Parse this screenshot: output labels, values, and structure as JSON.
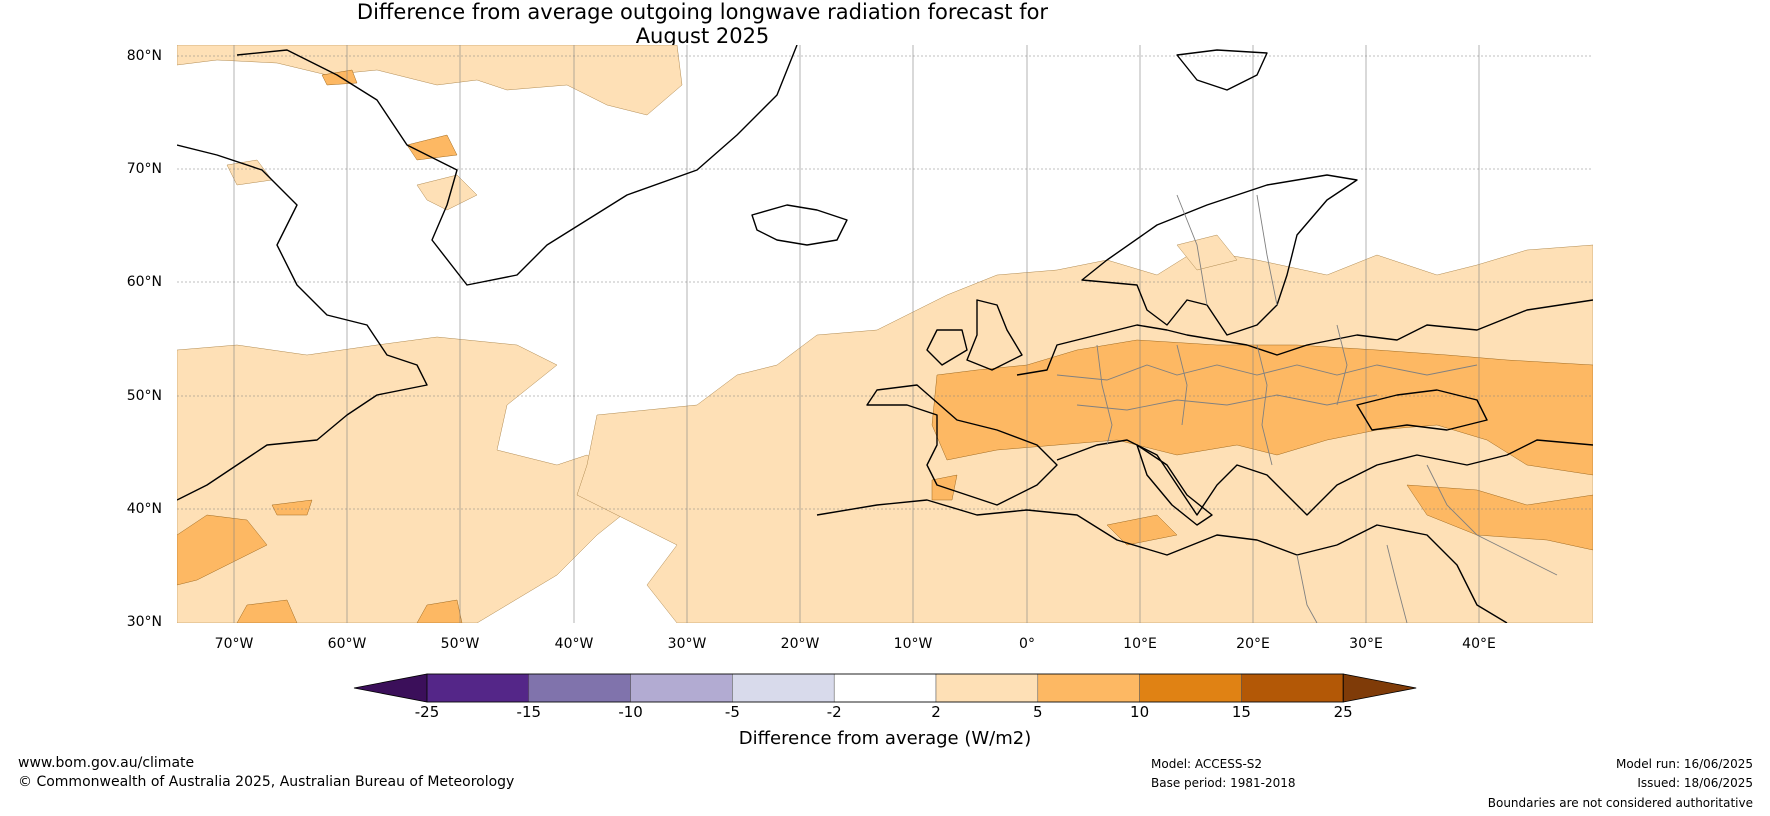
{
  "title": {
    "line1": "Difference from average outgoing longwave radiation forecast for",
    "line2": "August 2025"
  },
  "map": {
    "latitudes": [
      "80°N",
      "70°N",
      "60°N",
      "50°N",
      "40°N",
      "30°N"
    ],
    "longitudes": [
      "70°W",
      "60°W",
      "50°W",
      "40°W",
      "30°W",
      "20°W",
      "10°W",
      "0°",
      "10°E",
      "20°E",
      "30°E",
      "40°E"
    ],
    "lat_range": [
      30,
      81
    ],
    "lon_range": [
      -75,
      50
    ],
    "projection": "plate carree",
    "gridlines": true,
    "coastline_color": "#000000",
    "border_color": "#808080",
    "regions_shown": [
      "Greenland",
      "Iceland",
      "Svalbard",
      "Europe",
      "North Africa",
      "Middle East",
      "Eastern North America",
      "North Atlantic Ocean"
    ]
  },
  "colorbar": {
    "ticks": [
      "-25",
      "-15",
      "-10",
      "-5",
      "-2",
      "2",
      "5",
      "10",
      "15",
      "25"
    ],
    "colors": [
      "#3b0f5a",
      "#542688",
      "#8073ac",
      "#b2abd2",
      "#d8daeb",
      "#ffffff",
      "#fee0b6",
      "#fdb863",
      "#e08214",
      "#b35806",
      "#7f3b08"
    ],
    "label": "Difference from average (W/m2)",
    "extend": "both"
  },
  "footer": {
    "website": "www.bom.gov.au/climate",
    "copyright": "© Commonwealth of Australia 2025, Australian Bureau of Meteorology",
    "model": "Model: ACCESS-S2",
    "base_period": "Base period: 1981-2018",
    "model_run": "Model run: 16/06/2025",
    "issued": "Issued: 18/06/2025",
    "disclaimer": "Boundaries are not considered authoritative"
  }
}
